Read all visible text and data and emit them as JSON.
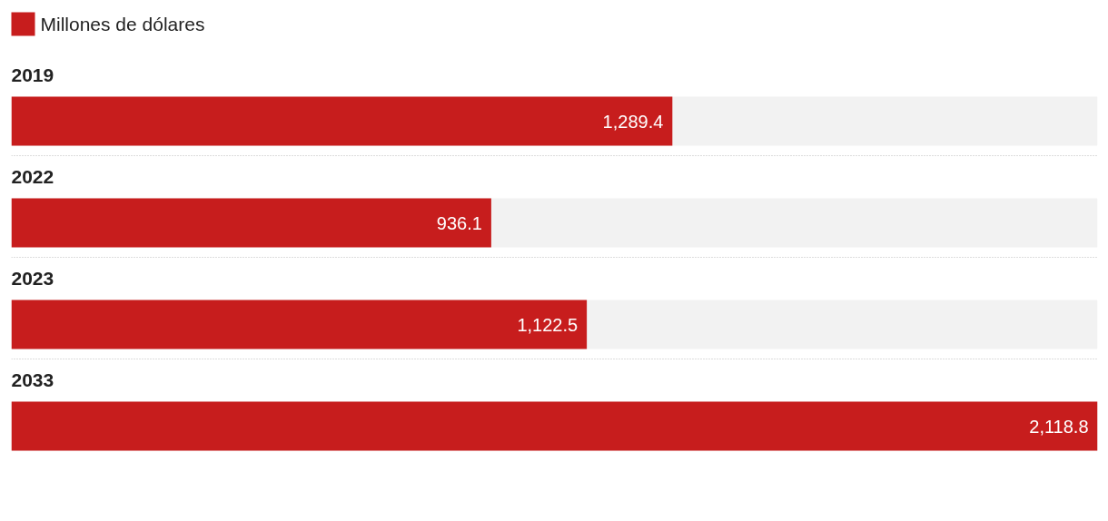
{
  "chart_data": {
    "type": "bar",
    "orientation": "horizontal",
    "categories": [
      "2019",
      "2022",
      "2023",
      "2033"
    ],
    "series": [
      {
        "name": "Millones de dólares",
        "color": "#c71d1d",
        "values": [
          1289.4,
          936.1,
          1122.5,
          2118.8
        ],
        "value_labels": [
          "1,289.4",
          "936.1",
          "1,122.5",
          "2,118.8"
        ]
      }
    ],
    "legend": "top left",
    "grid": false
  }
}
